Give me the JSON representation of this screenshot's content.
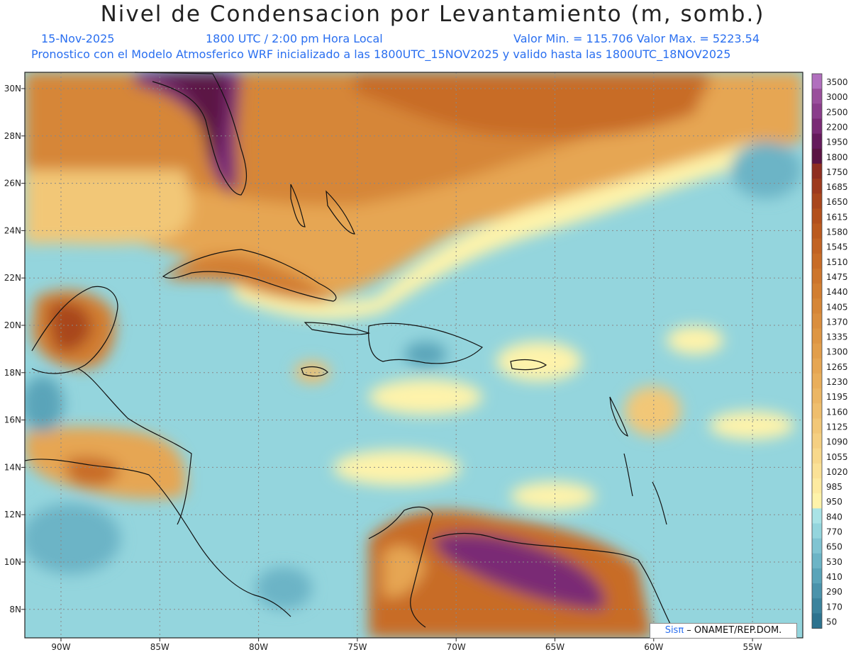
{
  "header": {
    "title": "Nivel de Condensacion por Levantamiento (m, somb.)",
    "date": "15-Nov-2025",
    "time": "1800 UTC / 2:00 pm Hora Local",
    "minmax": "Valor Min. = 115.706   Valor Max. = 5223.54",
    "forecast": "Pronostico con el Modelo Atmosferico WRF inicializado a las 1800UTC_15NOV2025 y valido hasta las  1800UTC_18NOV2025"
  },
  "axes": {
    "lat_labels": [
      "30N",
      "28N",
      "26N",
      "24N",
      "22N",
      "20N",
      "18N",
      "16N",
      "14N",
      "12N",
      "10N",
      "8N"
    ],
    "lon_labels": [
      "90W",
      "85W",
      "80W",
      "75W",
      "70W",
      "65W",
      "60W",
      "55W"
    ]
  },
  "colorbar": {
    "levels": [
      "3500",
      "3000",
      "2500",
      "2200",
      "1950",
      "1800",
      "1750",
      "1685",
      "1650",
      "1615",
      "1580",
      "1545",
      "1510",
      "1475",
      "1440",
      "1405",
      "1370",
      "1335",
      "1300",
      "1265",
      "1230",
      "1195",
      "1160",
      "1125",
      "1090",
      "1055",
      "1020",
      "985",
      "950",
      "840",
      "770",
      "650",
      "530",
      "410",
      "290",
      "170",
      "50"
    ],
    "colors": [
      "#b16fbe",
      "#9a4f9c",
      "#8a3d8b",
      "#7a2a75",
      "#651a5c",
      "#5b1444",
      "#8f2e20",
      "#9e3a1d",
      "#a9461c",
      "#b3501c",
      "#bb5a1e",
      "#c26323",
      "#c86c27",
      "#cd752c",
      "#d27e31",
      "#d68637",
      "#da8e3e",
      "#de9644",
      "#e29e4b",
      "#e6a653",
      "#e9ae5b",
      "#ecb664",
      "#efbe6d",
      "#f2c777",
      "#f5cf81",
      "#f8d88b",
      "#fbe196",
      "#fdeaa0",
      "#fef3aa",
      "#a9e3e6",
      "#94d5dd",
      "#80c4d2",
      "#6cb4c6",
      "#5aa4b9",
      "#4a93ab",
      "#3b839d",
      "#2d738f"
    ]
  },
  "credit": {
    "brand": "Sisπ",
    "text": " –  ONAMET/REP.DOM."
  }
}
